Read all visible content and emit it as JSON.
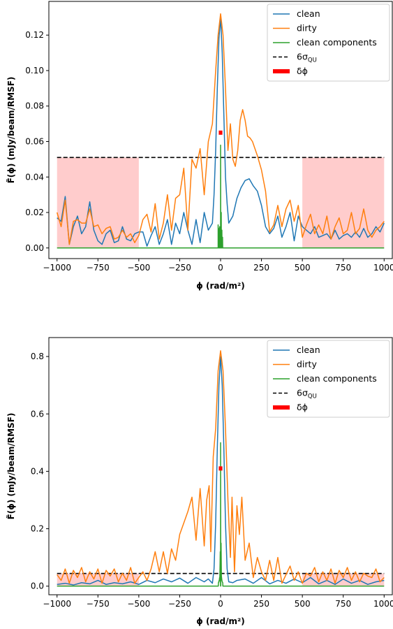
{
  "chart_data": [
    {
      "type": "line",
      "title": "",
      "xlabel": "ϕ (rad/m²)",
      "ylabel": "F̃(ϕ) (mJy/beam/RMSF)",
      "xlim": [
        -1050,
        1050
      ],
      "ylim": [
        -0.006,
        0.139
      ],
      "xticks": [
        -1000,
        -750,
        -500,
        -250,
        0,
        250,
        500,
        750,
        1000
      ],
      "xtick_labels": [
        "−1000",
        "−750",
        "−500",
        "−250",
        "0",
        "250",
        "500",
        "750",
        "1000"
      ],
      "yticks": [
        0.0,
        0.02,
        0.04,
        0.06,
        0.08,
        0.1,
        0.12
      ],
      "ytick_labels": [
        "0.00",
        "0.02",
        "0.04",
        "0.06",
        "0.08",
        "0.10",
        "0.12"
      ],
      "grid": false,
      "legend_position": "top-right",
      "shaded_regions": [
        [
          -1000,
          -500,
          0,
          0.051
        ],
        [
          500,
          1000,
          0,
          0.051
        ]
      ],
      "threshold": {
        "name": "6σQU",
        "value": 0.051,
        "color": "#000000"
      },
      "delta_phi": {
        "name": "δϕ",
        "center": 0,
        "halfwidth": 11,
        "y": 0.065,
        "color": "#ff0000"
      },
      "series": [
        {
          "name": "clean",
          "color": "#1f77b4",
          "x": [
            -1000,
            -975,
            -950,
            -925,
            -900,
            -875,
            -850,
            -825,
            -800,
            -775,
            -750,
            -725,
            -700,
            -675,
            -650,
            -625,
            -600,
            -575,
            -550,
            -525,
            -500,
            -475,
            -450,
            -425,
            -400,
            -375,
            -350,
            -325,
            -300,
            -275,
            -250,
            -225,
            -200,
            -175,
            -150,
            -125,
            -100,
            -75,
            -50,
            -40,
            -30,
            -20,
            -10,
            0,
            10,
            20,
            30,
            40,
            50,
            75,
            100,
            125,
            150,
            175,
            200,
            225,
            250,
            275,
            300,
            325,
            350,
            375,
            400,
            425,
            450,
            475,
            500,
            525,
            550,
            575,
            600,
            625,
            650,
            675,
            700,
            725,
            750,
            775,
            800,
            825,
            850,
            875,
            900,
            925,
            950,
            975,
            1000
          ],
          "y": [
            0.017,
            0.015,
            0.029,
            0.002,
            0.012,
            0.018,
            0.008,
            0.012,
            0.026,
            0.01,
            0.004,
            0.002,
            0.008,
            0.01,
            0.003,
            0.004,
            0.012,
            0.005,
            0.004,
            0.008,
            0.009,
            0.009,
            0.001,
            0.007,
            0.012,
            0.002,
            0.008,
            0.016,
            0.002,
            0.014,
            0.008,
            0.02,
            0.01,
            0.002,
            0.016,
            0.003,
            0.02,
            0.01,
            0.014,
            0.03,
            0.055,
            0.09,
            0.118,
            0.13,
            0.11,
            0.075,
            0.04,
            0.025,
            0.014,
            0.018,
            0.028,
            0.034,
            0.038,
            0.039,
            0.035,
            0.032,
            0.024,
            0.012,
            0.008,
            0.011,
            0.018,
            0.006,
            0.012,
            0.02,
            0.004,
            0.018,
            0.012,
            0.01,
            0.008,
            0.012,
            0.006,
            0.007,
            0.008,
            0.005,
            0.01,
            0.005,
            0.007,
            0.008,
            0.006,
            0.009,
            0.006,
            0.011,
            0.006,
            0.008,
            0.012,
            0.009,
            0.014
          ]
        },
        {
          "name": "dirty",
          "color": "#ff7f0e",
          "x": [
            -1000,
            -975,
            -950,
            -925,
            -900,
            -875,
            -850,
            -825,
            -800,
            -775,
            -750,
            -725,
            -700,
            -675,
            -650,
            -625,
            -600,
            -575,
            -550,
            -525,
            -500,
            -475,
            -450,
            -425,
            -400,
            -375,
            -350,
            -325,
            -300,
            -275,
            -250,
            -225,
            -200,
            -175,
            -150,
            -125,
            -100,
            -75,
            -50,
            -30,
            -15,
            0,
            15,
            30,
            45,
            60,
            75,
            90,
            105,
            120,
            135,
            150,
            165,
            180,
            195,
            210,
            225,
            250,
            275,
            300,
            325,
            350,
            375,
            400,
            425,
            450,
            475,
            500,
            525,
            550,
            575,
            600,
            625,
            650,
            675,
            700,
            725,
            750,
            775,
            800,
            825,
            850,
            875,
            900,
            925,
            950,
            975,
            1000
          ],
          "y": [
            0.02,
            0.012,
            0.027,
            0.002,
            0.015,
            0.016,
            0.014,
            0.014,
            0.022,
            0.012,
            0.013,
            0.008,
            0.011,
            0.012,
            0.005,
            0.006,
            0.01,
            0.006,
            0.008,
            0.003,
            0.007,
            0.016,
            0.019,
            0.009,
            0.025,
            0.005,
            0.014,
            0.03,
            0.01,
            0.028,
            0.03,
            0.045,
            0.01,
            0.05,
            0.045,
            0.056,
            0.03,
            0.06,
            0.07,
            0.1,
            0.12,
            0.132,
            0.12,
            0.09,
            0.055,
            0.07,
            0.05,
            0.046,
            0.055,
            0.072,
            0.078,
            0.072,
            0.063,
            0.062,
            0.06,
            0.056,
            0.052,
            0.044,
            0.032,
            0.009,
            0.013,
            0.024,
            0.012,
            0.022,
            0.027,
            0.015,
            0.024,
            0.006,
            0.013,
            0.019,
            0.008,
            0.013,
            0.008,
            0.018,
            0.005,
            0.012,
            0.017,
            0.008,
            0.01,
            0.02,
            0.008,
            0.011,
            0.022,
            0.01,
            0.006,
            0.01,
            0.012,
            0.015
          ]
        },
        {
          "name": "clean components",
          "color": "#2ca02c",
          "x": [
            -1000,
            -16,
            -15,
            -15,
            -14,
            -12,
            -12,
            -11,
            -6,
            -6,
            -5,
            -3,
            -3,
            -2,
            0,
            0,
            1,
            4,
            4,
            5,
            8,
            8,
            9,
            12,
            12,
            13,
            1000
          ],
          "y": [
            0,
            0,
            0,
            0.013,
            0,
            0,
            0.011,
            0,
            0,
            0.012,
            0,
            0,
            0.008,
            0,
            0,
            0.058,
            0,
            0,
            0.02,
            0,
            0,
            0.01,
            0,
            0,
            0.006,
            0,
            0
          ]
        }
      ]
    },
    {
      "type": "line",
      "title": "",
      "xlabel": "ϕ (rad/m²)",
      "ylabel": "F̃(ϕ) (mJy/beam/RMSF)",
      "xlim": [
        -1050,
        1050
      ],
      "ylim": [
        -0.03,
        0.866
      ],
      "xticks": [
        -1000,
        -750,
        -500,
        -250,
        0,
        250,
        500,
        750,
        1000
      ],
      "xtick_labels": [
        "−1000",
        "−750",
        "−500",
        "−250",
        "0",
        "250",
        "500",
        "750",
        "1000"
      ],
      "yticks": [
        0.0,
        0.2,
        0.4,
        0.6,
        0.8
      ],
      "ytick_labels": [
        "0.0",
        "0.2",
        "0.4",
        "0.6",
        "0.8"
      ],
      "grid": false,
      "legend_position": "top-right",
      "shaded_regions": [
        [
          -1000,
          -500,
          0,
          0.044
        ],
        [
          500,
          1000,
          0,
          0.044
        ]
      ],
      "threshold": {
        "name": "6σQU",
        "value": 0.044,
        "color": "#000000"
      },
      "delta_phi": {
        "name": "δϕ",
        "center": 0,
        "halfwidth": 11,
        "y": 0.41,
        "color": "#ff0000"
      },
      "series": [
        {
          "name": "clean",
          "color": "#1f77b4",
          "x": [
            -1000,
            -950,
            -900,
            -850,
            -800,
            -750,
            -700,
            -650,
            -600,
            -550,
            -500,
            -450,
            -400,
            -350,
            -300,
            -250,
            -200,
            -150,
            -100,
            -75,
            -50,
            -40,
            -30,
            -20,
            -10,
            0,
            10,
            20,
            30,
            40,
            50,
            75,
            100,
            150,
            200,
            250,
            300,
            350,
            400,
            450,
            500,
            550,
            600,
            650,
            700,
            750,
            800,
            850,
            900,
            950,
            1000
          ],
          "y": [
            0.006,
            0.01,
            0.004,
            0.012,
            0.008,
            0.02,
            0.006,
            0.012,
            0.008,
            0.015,
            0.006,
            0.02,
            0.012,
            0.025,
            0.015,
            0.028,
            0.01,
            0.03,
            0.015,
            0.025,
            0.01,
            0.06,
            0.22,
            0.48,
            0.7,
            0.8,
            0.7,
            0.48,
            0.22,
            0.06,
            0.015,
            0.012,
            0.02,
            0.025,
            0.01,
            0.03,
            0.008,
            0.02,
            0.01,
            0.025,
            0.012,
            0.03,
            0.008,
            0.02,
            0.006,
            0.025,
            0.01,
            0.02,
            0.006,
            0.015,
            0.02
          ]
        },
        {
          "name": "dirty",
          "color": "#ff7f0e",
          "x": [
            -1000,
            -975,
            -950,
            -925,
            -900,
            -875,
            -850,
            -825,
            -800,
            -775,
            -750,
            -725,
            -700,
            -675,
            -650,
            -625,
            -600,
            -575,
            -550,
            -525,
            -500,
            -475,
            -450,
            -425,
            -400,
            -375,
            -350,
            -325,
            -300,
            -275,
            -250,
            -225,
            -200,
            -175,
            -150,
            -125,
            -100,
            -85,
            -70,
            -60,
            -45,
            -30,
            -15,
            0,
            15,
            30,
            45,
            60,
            70,
            85,
            100,
            115,
            130,
            150,
            175,
            200,
            225,
            250,
            275,
            300,
            325,
            350,
            375,
            400,
            425,
            450,
            475,
            500,
            525,
            550,
            575,
            600,
            625,
            650,
            675,
            700,
            725,
            750,
            775,
            800,
            825,
            850,
            875,
            900,
            925,
            950,
            975,
            1000
          ],
          "y": [
            0.04,
            0.02,
            0.06,
            0.01,
            0.055,
            0.03,
            0.065,
            0.015,
            0.05,
            0.025,
            0.06,
            0.01,
            0.055,
            0.035,
            0.06,
            0.015,
            0.045,
            0.02,
            0.065,
            0.01,
            0.03,
            0.05,
            0.02,
            0.06,
            0.12,
            0.05,
            0.12,
            0.045,
            0.13,
            0.09,
            0.18,
            0.22,
            0.26,
            0.31,
            0.16,
            0.34,
            0.14,
            0.3,
            0.35,
            0.12,
            0.45,
            0.55,
            0.75,
            0.82,
            0.75,
            0.55,
            0.3,
            0.1,
            0.31,
            0.05,
            0.28,
            0.18,
            0.31,
            0.09,
            0.15,
            0.03,
            0.1,
            0.05,
            0.02,
            0.09,
            0.02,
            0.1,
            0.01,
            0.04,
            0.07,
            0.02,
            0.05,
            0.01,
            0.045,
            0.035,
            0.065,
            0.015,
            0.05,
            0.02,
            0.06,
            0.01,
            0.055,
            0.03,
            0.065,
            0.02,
            0.05,
            0.015,
            0.045,
            0.035,
            0.03,
            0.06,
            0.015,
            0.03
          ]
        },
        {
          "name": "clean components",
          "color": "#2ca02c",
          "x": [
            -1000,
            -14,
            -13,
            -12,
            -11,
            -10,
            -9,
            -8,
            -7,
            -6,
            -5,
            -3,
            -2,
            -1,
            0,
            0,
            1,
            2,
            3,
            5,
            6,
            7,
            8,
            9,
            10,
            11,
            12,
            13,
            14,
            1000
          ],
          "y": [
            0,
            0,
            0.012,
            0.014,
            0.016,
            0.014,
            0.02,
            0.018,
            0.025,
            0.03,
            0.02,
            0.08,
            0.12,
            0.06,
            0,
            0.5,
            0,
            0.1,
            0.15,
            0.035,
            0.03,
            0.025,
            0.02,
            0.018,
            0.016,
            0.014,
            0.013,
            0.012,
            0,
            0
          ]
        }
      ]
    }
  ],
  "legend": {
    "clean": "clean",
    "dirty": "dirty",
    "clean_components": "clean components",
    "threshold": "6σ",
    "threshold_subscript": "QU",
    "delta_phi": "δϕ"
  }
}
